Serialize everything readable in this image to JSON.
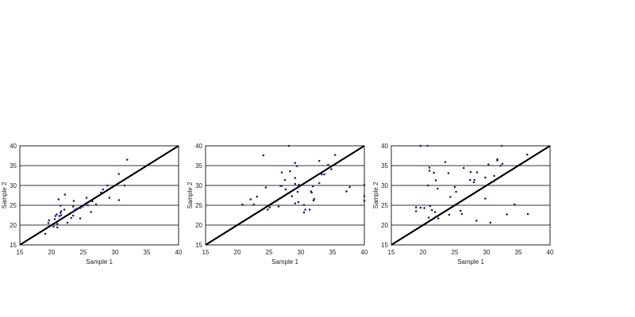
{
  "chart_data": [
    {
      "type": "scatter",
      "xlabel": "Sample 1",
      "ylabel": "Sample 2",
      "xlim": [
        15,
        40
      ],
      "ylim": [
        15,
        40
      ],
      "xticks": [
        "15",
        "20",
        "25",
        "30",
        "35",
        "40"
      ],
      "yticks": [
        "15",
        "20",
        "25",
        "30",
        "35",
        "40"
      ],
      "grid": "horizontal",
      "reference_line": "y = x",
      "point_color": "#1f1f7a",
      "points": [
        [
          19.0,
          17.8
        ],
        [
          19.5,
          20.5
        ],
        [
          19.6,
          21.2
        ],
        [
          20.3,
          19.6
        ],
        [
          20.9,
          19.4
        ],
        [
          20.5,
          21.5
        ],
        [
          20.6,
          22.3
        ],
        [
          20.8,
          22.7
        ],
        [
          20.9,
          20.3
        ],
        [
          21.1,
          26.5
        ],
        [
          21.2,
          22.3
        ],
        [
          21.4,
          23.1
        ],
        [
          21.4,
          24.9
        ],
        [
          21.5,
          23.5
        ],
        [
          21.5,
          22.5
        ],
        [
          21.4,
          21.5
        ],
        [
          22.0,
          23.9
        ],
        [
          22.1,
          27.7
        ],
        [
          22.5,
          20.6
        ],
        [
          23.1,
          21.8
        ],
        [
          23.4,
          22.4
        ],
        [
          23.5,
          26.1
        ],
        [
          23.4,
          24.7
        ],
        [
          23.5,
          23.5
        ],
        [
          23.7,
          23.9
        ],
        [
          24.0,
          24.1
        ],
        [
          24.5,
          21.7
        ],
        [
          24.5,
          24.3
        ],
        [
          24.9,
          24.7
        ],
        [
          25.1,
          25.1
        ],
        [
          25.3,
          25.1
        ],
        [
          25.5,
          26.9
        ],
        [
          25.7,
          25.0
        ],
        [
          26.2,
          23.3
        ],
        [
          26.4,
          26.0
        ],
        [
          27.0,
          25.2
        ],
        [
          27.8,
          28.2
        ],
        [
          28.1,
          29.0
        ],
        [
          28.8,
          30.0
        ],
        [
          29.1,
          26.9
        ],
        [
          30.6,
          32.9
        ],
        [
          30.6,
          26.3
        ],
        [
          31.5,
          30.0
        ],
        [
          31.9,
          36.5
        ]
      ]
    },
    {
      "type": "scatter",
      "xlabel": "Sample 1",
      "ylabel": "Sample 2",
      "xlim": [
        15,
        40
      ],
      "ylim": [
        15,
        40
      ],
      "xticks": [
        "15",
        "20",
        "25",
        "30",
        "35",
        "40"
      ],
      "yticks": [
        "15",
        "20",
        "25",
        "30",
        "35",
        "40"
      ],
      "grid": "horizontal",
      "reference_line": "y = x",
      "point_color": "#1f1f7a",
      "points": [
        [
          20.8,
          25.2
        ],
        [
          22.1,
          26.5
        ],
        [
          22.6,
          25.2
        ],
        [
          23.1,
          27.2
        ],
        [
          24.1,
          37.6
        ],
        [
          24.5,
          29.5
        ],
        [
          24.8,
          23.9
        ],
        [
          25.1,
          24.5
        ],
        [
          26.5,
          24.7
        ],
        [
          26.8,
          29.9
        ],
        [
          27.0,
          29.9
        ],
        [
          27.0,
          33.3
        ],
        [
          27.5,
          31.4
        ],
        [
          27.6,
          29.0
        ],
        [
          28.1,
          40.2
        ],
        [
          28.3,
          33.6
        ],
        [
          28.6,
          27.3
        ],
        [
          29.1,
          35.7
        ],
        [
          29.1,
          31.9
        ],
        [
          29.1,
          30.4
        ],
        [
          29.1,
          25.5
        ],
        [
          29.4,
          34.9
        ],
        [
          29.5,
          28.4
        ],
        [
          29.6,
          25.8
        ],
        [
          29.7,
          30.2
        ],
        [
          30.5,
          25.1
        ],
        [
          30.5,
          23.2
        ],
        [
          30.7,
          23.9
        ],
        [
          31.4,
          23.9
        ],
        [
          31.6,
          28.5
        ],
        [
          31.7,
          28.2
        ],
        [
          31.9,
          29.8
        ],
        [
          32.0,
          26.2
        ],
        [
          32.1,
          26.6
        ],
        [
          32.9,
          36.2
        ],
        [
          32.9,
          30.6
        ],
        [
          33.3,
          32.8
        ],
        [
          33.7,
          32.8
        ],
        [
          34.3,
          35.2
        ],
        [
          34.8,
          34.1
        ],
        [
          35.4,
          37.7
        ],
        [
          37.2,
          28.5
        ],
        [
          37.7,
          29.6
        ],
        [
          40.0,
          30.1
        ],
        [
          40.0,
          27.3
        ],
        [
          40.0,
          26.1
        ]
      ]
    },
    {
      "type": "scatter",
      "xlabel": "Sample 1",
      "ylabel": "Sample 2",
      "xlim": [
        15,
        40
      ],
      "ylim": [
        15,
        40
      ],
      "xticks": [
        "15",
        "20",
        "25",
        "30",
        "35",
        "40"
      ],
      "yticks": [
        "15",
        "20",
        "25",
        "30",
        "35",
        "40"
      ],
      "grid": "horizontal",
      "reference_line": "y = x",
      "point_color": "#1f1f7a",
      "points": [
        [
          18.9,
          24.5
        ],
        [
          18.9,
          23.5
        ],
        [
          19.6,
          24.4
        ],
        [
          20.2,
          24.3
        ],
        [
          19.6,
          40.1
        ],
        [
          20.7,
          40.1
        ],
        [
          20.9,
          21.9
        ],
        [
          20.8,
          30.0
        ],
        [
          21.0,
          34.5
        ],
        [
          21.0,
          33.7
        ],
        [
          21.1,
          24.8
        ],
        [
          21.4,
          23.8
        ],
        [
          21.7,
          33.2
        ],
        [
          21.9,
          23.3
        ],
        [
          22.0,
          22.1
        ],
        [
          22.0,
          31.3
        ],
        [
          22.3,
          29.2
        ],
        [
          22.4,
          21.7
        ],
        [
          23.5,
          35.9
        ],
        [
          24.0,
          33.1
        ],
        [
          24.1,
          22.6
        ],
        [
          24.3,
          27.1
        ],
        [
          25.0,
          29.6
        ],
        [
          25.2,
          28.4
        ],
        [
          25.9,
          23.6
        ],
        [
          26.1,
          22.8
        ],
        [
          26.4,
          34.4
        ],
        [
          27.4,
          31.4
        ],
        [
          27.5,
          33.4
        ],
        [
          28.1,
          31.4
        ],
        [
          28.0,
          30.8
        ],
        [
          28.4,
          21.1
        ],
        [
          28.5,
          33.3
        ],
        [
          29.8,
          32.0
        ],
        [
          29.8,
          26.7
        ],
        [
          30.3,
          35.3
        ],
        [
          30.6,
          20.6
        ],
        [
          31.1,
          31.0
        ],
        [
          31.2,
          32.4
        ],
        [
          31.7,
          36.6
        ],
        [
          31.7,
          36.3
        ],
        [
          32.2,
          35.0
        ],
        [
          32.4,
          40.1
        ],
        [
          32.5,
          35.5
        ],
        [
          33.2,
          22.7
        ],
        [
          34.4,
          25.2
        ],
        [
          36.4,
          37.8
        ],
        [
          36.5,
          22.8
        ]
      ]
    }
  ]
}
